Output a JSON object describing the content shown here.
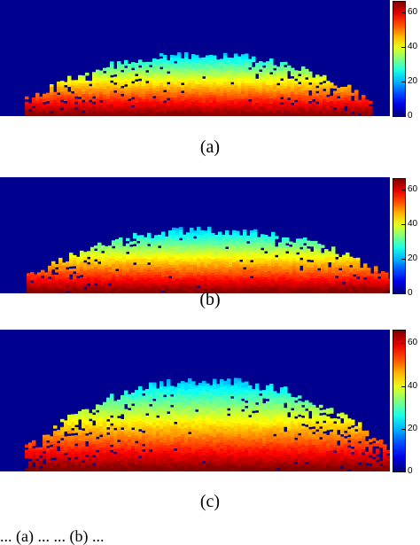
{
  "panels": [
    {
      "caption": "(a)"
    },
    {
      "caption": "(b)"
    },
    {
      "caption": "(c)"
    }
  ],
  "colorbar": {
    "colormap": "jet",
    "min": 0,
    "max": 66,
    "ticks": [
      "0",
      "20",
      "40",
      "60"
    ],
    "tick_values": [
      0,
      20,
      40,
      60
    ]
  },
  "background_color": "#00008f",
  "bottom_caption": "... (a) ... ... (b) ..."
}
